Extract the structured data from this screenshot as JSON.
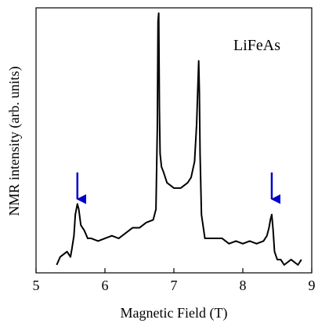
{
  "chart_data": {
    "type": "line",
    "annotation": "LiFeAs",
    "xlabel": "Magnetic Field (T)",
    "ylabel": "NMR intensity (arb. units)",
    "xlim": [
      5,
      9
    ],
    "ylim": [
      0,
      1.0
    ],
    "x_ticks": [
      "5",
      "6",
      "7",
      "8",
      "9"
    ],
    "grid": false,
    "legend": "none",
    "line_color": "#000000",
    "arrow_color": "#0000cc",
    "arrows_at_x": [
      5.6,
      8.42
    ],
    "series": [
      {
        "x": [
          5.3,
          5.35,
          5.4,
          5.45,
          5.5,
          5.52,
          5.55,
          5.57,
          5.6,
          5.62,
          5.65,
          5.7,
          5.75,
          5.8,
          5.9,
          6.0,
          6.1,
          6.2,
          6.3,
          6.4,
          6.5,
          6.6,
          6.7,
          6.74,
          6.76,
          6.77,
          6.78,
          6.79,
          6.8,
          6.82,
          6.85,
          6.9,
          7.0,
          7.1,
          7.2,
          7.25,
          7.3,
          7.33,
          7.35,
          7.36,
          7.37,
          7.38,
          7.4,
          7.45,
          7.5,
          7.6,
          7.7,
          7.8,
          7.9,
          8.0,
          8.1,
          8.2,
          8.3,
          8.35,
          8.38,
          8.4,
          8.42,
          8.44,
          8.46,
          8.5,
          8.55,
          8.6,
          8.7,
          8.8,
          8.85
        ],
        "y": [
          0.03,
          0.06,
          0.07,
          0.08,
          0.06,
          0.09,
          0.14,
          0.22,
          0.26,
          0.24,
          0.18,
          0.16,
          0.13,
          0.13,
          0.12,
          0.13,
          0.14,
          0.13,
          0.15,
          0.17,
          0.17,
          0.19,
          0.2,
          0.24,
          0.55,
          0.95,
          0.98,
          0.62,
          0.45,
          0.4,
          0.38,
          0.34,
          0.32,
          0.32,
          0.34,
          0.36,
          0.42,
          0.56,
          0.72,
          0.8,
          0.68,
          0.45,
          0.22,
          0.13,
          0.13,
          0.13,
          0.13,
          0.11,
          0.12,
          0.11,
          0.12,
          0.11,
          0.12,
          0.14,
          0.17,
          0.2,
          0.22,
          0.16,
          0.08,
          0.05,
          0.05,
          0.03,
          0.05,
          0.03,
          0.05
        ]
      }
    ]
  }
}
